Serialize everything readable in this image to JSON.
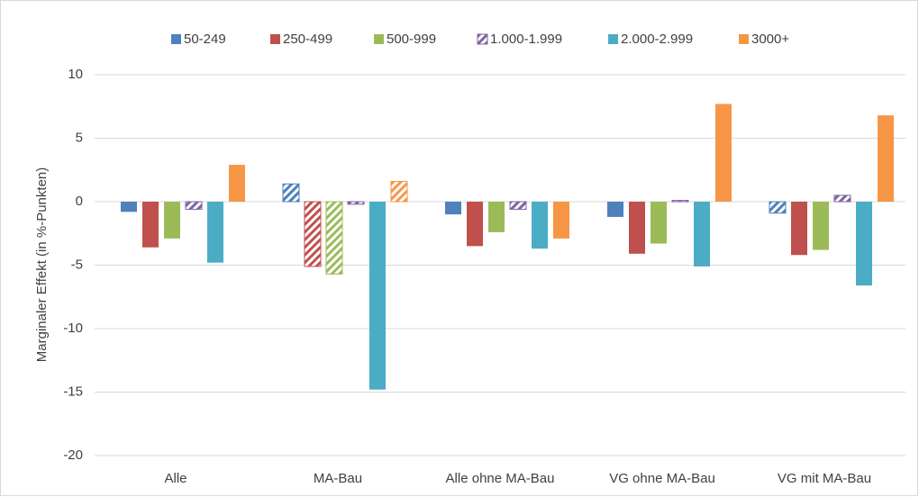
{
  "chart_data": {
    "type": "bar",
    "y_label": "Marginaler Effekt (in %-Punkten)",
    "categories": [
      "Alle",
      "MA-Bau",
      "Alle ohne MA-Bau",
      "VG ohne MA-Bau",
      "VG mit MA-Bau"
    ],
    "series": [
      {
        "name": "50-249",
        "color": "#4f81bd",
        "values": [
          -0.8,
          1.4,
          -1.0,
          -1.2,
          -0.9
        ],
        "hatched": [
          false,
          true,
          false,
          false,
          true
        ]
      },
      {
        "name": "250-499",
        "color": "#c0504d",
        "values": [
          -3.6,
          -5.1,
          -3.5,
          -4.1,
          -4.2
        ],
        "hatched": [
          false,
          true,
          false,
          false,
          false
        ]
      },
      {
        "name": "500-999",
        "color": "#9bbb59",
        "values": [
          -2.9,
          -5.7,
          -2.4,
          -3.3,
          -3.8
        ],
        "hatched": [
          false,
          true,
          false,
          false,
          false
        ]
      },
      {
        "name": "1.000-1.999",
        "color": "#8064a2",
        "values": [
          -0.6,
          -0.2,
          -0.6,
          0.1,
          0.5
        ],
        "hatched": [
          true,
          true,
          true,
          true,
          true
        ]
      },
      {
        "name": "2.000-2.999",
        "color": "#4bacc6",
        "values": [
          -4.8,
          -14.8,
          -3.7,
          -5.1,
          -6.6
        ],
        "hatched": [
          false,
          false,
          false,
          false,
          false
        ]
      },
      {
        "name": "3000+",
        "color": "#f79646",
        "values": [
          2.9,
          1.6,
          -2.9,
          7.7,
          6.8
        ],
        "hatched": [
          false,
          true,
          false,
          false,
          false
        ]
      }
    ],
    "ylim": [
      -20,
      10
    ],
    "yticks": [
      -20,
      -15,
      -10,
      -5,
      0,
      5,
      10
    ],
    "grid": true
  }
}
